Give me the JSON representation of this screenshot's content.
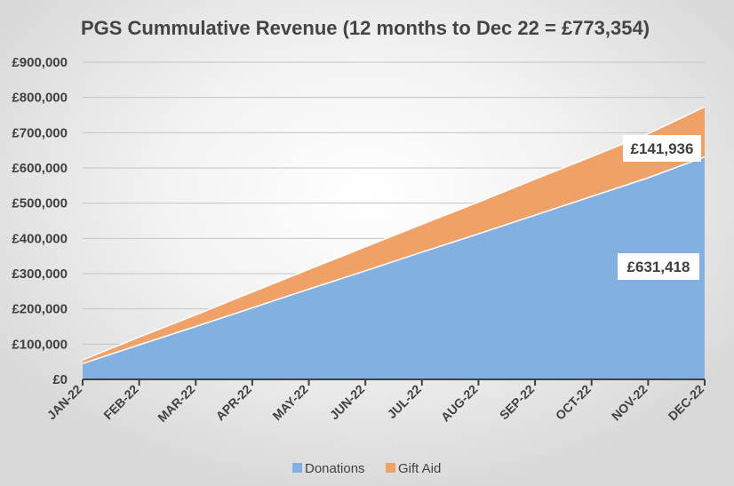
{
  "chart_data": {
    "type": "area",
    "stacked": true,
    "title": "PGS Cummulative Revenue (12 months to Dec 22 = £773,354)",
    "xlabel": "",
    "ylabel": "",
    "categories": [
      "JAN-22",
      "FEB-22",
      "MAR-22",
      "APR-22",
      "MAY-22",
      "JUN-22",
      "JUL-22",
      "AUG-22",
      "SEP-22",
      "OCT-22",
      "NOV-22",
      "DEC-22"
    ],
    "series": [
      {
        "name": "Donations",
        "color": "#82b0e0",
        "values": [
          45000,
          98000,
          150000,
          203000,
          256000,
          308000,
          361000,
          413000,
          466000,
          519000,
          572000,
          631418
        ]
      },
      {
        "name": "Gift Aid",
        "color": "#f0a167",
        "values": [
          10000,
          22000,
          33000,
          45000,
          56000,
          68000,
          79000,
          90000,
          102000,
          113000,
          125000,
          141936
        ]
      }
    ],
    "ylim": [
      0,
      900000
    ],
    "y_ticks": [
      "£0",
      "£100,000",
      "£200,000",
      "£300,000",
      "£400,000",
      "£500,000",
      "£600,000",
      "£700,000",
      "£800,000",
      "£900,000"
    ],
    "annotations": [
      {
        "text": "£141,936",
        "series": "Gift Aid"
      },
      {
        "text": "£631,418",
        "series": "Donations"
      }
    ],
    "grid": true,
    "legend": "bottom"
  }
}
